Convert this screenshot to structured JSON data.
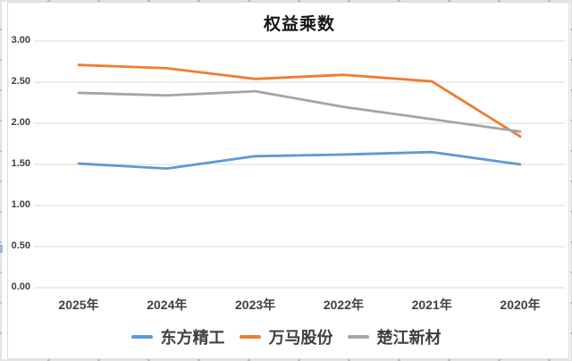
{
  "chart_data": {
    "type": "line",
    "title": "权益乘数",
    "categories": [
      "2025年",
      "2024年",
      "2023年",
      "2022年",
      "2021年",
      "2020年"
    ],
    "series": [
      {
        "name": "东方精工",
        "color": "#5B9BD5",
        "values": [
          1.51,
          1.45,
          1.6,
          1.62,
          1.65,
          1.5
        ]
      },
      {
        "name": "万马股份",
        "color": "#ED7D31",
        "values": [
          2.71,
          2.67,
          2.54,
          2.59,
          2.51,
          1.84
        ]
      },
      {
        "name": "楚江新材",
        "color": "#A5A5A5",
        "values": [
          2.37,
          2.34,
          2.39,
          2.2,
          2.05,
          1.9
        ]
      }
    ],
    "ylim": [
      0,
      3
    ],
    "ytick_step": 0.5,
    "ytick_labels": [
      "0.00",
      "0.50",
      "1.00",
      "1.50",
      "2.00",
      "2.50",
      "3.00"
    ],
    "grid": "horizontal-only",
    "gridline_color": "#D9D9D9",
    "axis_text_color": "#404040",
    "legend_position": "bottom"
  }
}
